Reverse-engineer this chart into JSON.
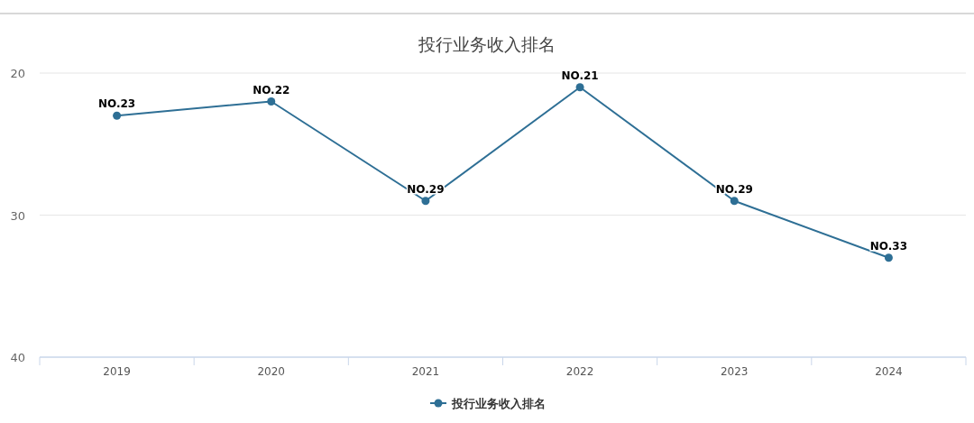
{
  "chart_data": {
    "type": "line",
    "title": "投行业务收入排名",
    "categories": [
      "2019",
      "2020",
      "2021",
      "2022",
      "2023",
      "2024"
    ],
    "series": [
      {
        "name": "投行业务收入排名",
        "color": "#2e6f95",
        "values": [
          23,
          22,
          29,
          21,
          29,
          33
        ],
        "value_labels": [
          "NO.23",
          "NO.22",
          "NO.29",
          "NO.21",
          "NO.29",
          "NO.33"
        ]
      }
    ],
    "ylim": [
      40,
      20
    ],
    "yticks": [
      20,
      30,
      40
    ],
    "grid": "y",
    "legend": "bottom",
    "marker": "circle",
    "line_style": "solid"
  }
}
